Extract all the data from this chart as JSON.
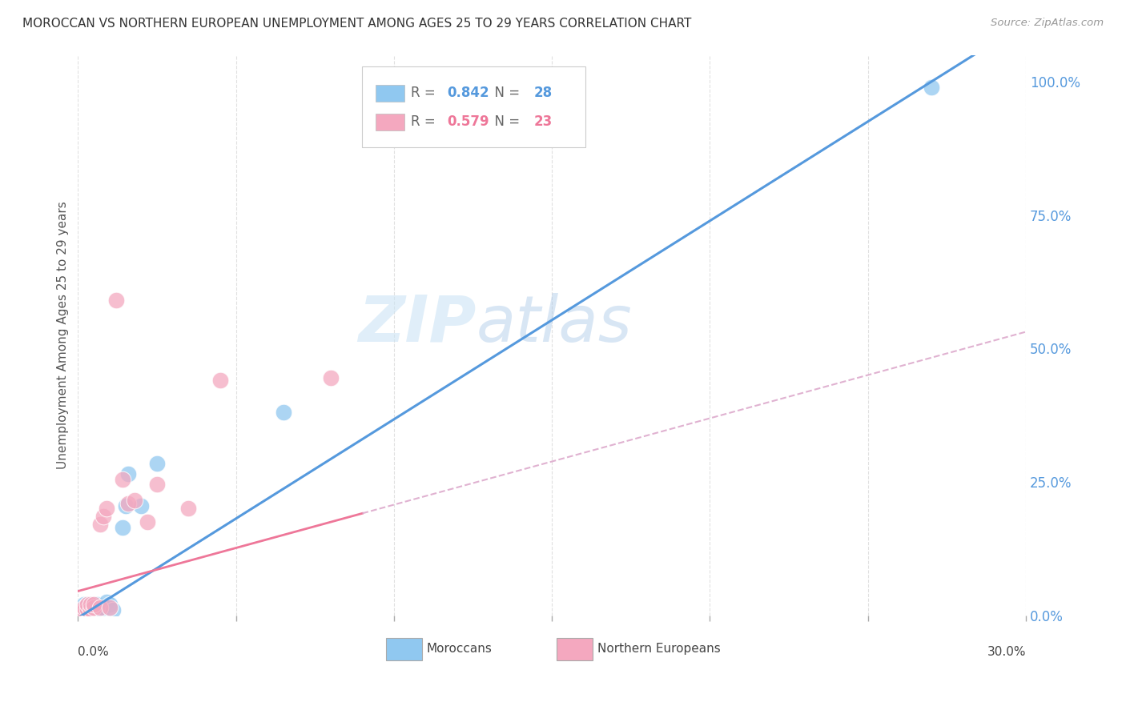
{
  "title": "MOROCCAN VS NORTHERN EUROPEAN UNEMPLOYMENT AMONG AGES 25 TO 29 YEARS CORRELATION CHART",
  "source": "Source: ZipAtlas.com",
  "ylabel": "Unemployment Among Ages 25 to 29 years",
  "legend_blue_r": "0.842",
  "legend_blue_n": "28",
  "legend_pink_r": "0.579",
  "legend_pink_n": "23",
  "legend_labels": [
    "Moroccans",
    "Northern Europeans"
  ],
  "blue_color": "#90c8f0",
  "pink_color": "#f4a8bf",
  "blue_line_color": "#5599dd",
  "pink_line_color": "#ee7799",
  "pink_dashed_color": "#ddaacc",
  "watermark_color": "#cce4f5",
  "xlim": [
    0,
    0.3
  ],
  "ylim": [
    0,
    1.05
  ],
  "right_ytick_vals": [
    0,
    0.25,
    0.5,
    0.75,
    1.0
  ],
  "blue_points_x": [
    0.001,
    0.001,
    0.001,
    0.002,
    0.002,
    0.002,
    0.002,
    0.003,
    0.003,
    0.003,
    0.004,
    0.004,
    0.005,
    0.005,
    0.006,
    0.006,
    0.007,
    0.008,
    0.009,
    0.01,
    0.011,
    0.014,
    0.015,
    0.016,
    0.02,
    0.025,
    0.065,
    0.27
  ],
  "blue_points_y": [
    0.005,
    0.007,
    0.01,
    0.005,
    0.01,
    0.012,
    0.02,
    0.01,
    0.015,
    0.02,
    0.01,
    0.02,
    0.01,
    0.015,
    0.01,
    0.02,
    0.01,
    0.015,
    0.025,
    0.02,
    0.01,
    0.165,
    0.205,
    0.265,
    0.205,
    0.285,
    0.38,
    0.99
  ],
  "pink_points_x": [
    0.001,
    0.002,
    0.002,
    0.003,
    0.003,
    0.004,
    0.004,
    0.005,
    0.005,
    0.007,
    0.007,
    0.008,
    0.009,
    0.01,
    0.012,
    0.014,
    0.016,
    0.018,
    0.022,
    0.025,
    0.035,
    0.045,
    0.08
  ],
  "pink_points_y": [
    0.007,
    0.008,
    0.015,
    0.012,
    0.02,
    0.012,
    0.02,
    0.015,
    0.02,
    0.015,
    0.17,
    0.185,
    0.2,
    0.015,
    0.59,
    0.255,
    0.21,
    0.215,
    0.175,
    0.245,
    0.2,
    0.44,
    0.445
  ],
  "blue_line_slope": 3.72,
  "blue_line_intercept": -0.005,
  "pink_line_slope": 1.62,
  "pink_line_intercept": 0.045
}
